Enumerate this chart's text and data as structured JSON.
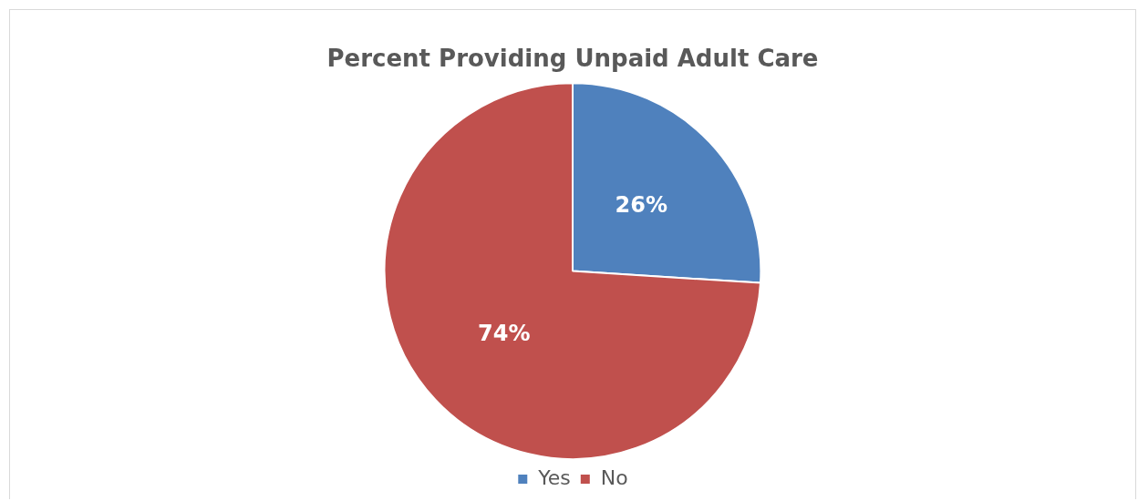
{
  "chart_data": {
    "type": "pie",
    "title": "Percent Providing Unpaid Adult Care",
    "categories": [
      "Yes",
      "No"
    ],
    "values": [
      26,
      74
    ],
    "colors": [
      "#4f81bd",
      "#c0504d"
    ],
    "value_labels": [
      "26%",
      "74%"
    ],
    "legend": "bottom"
  }
}
